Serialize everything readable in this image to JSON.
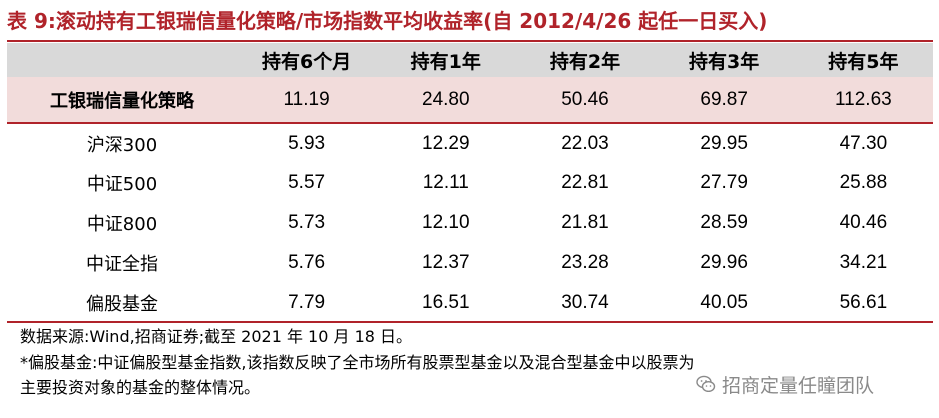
{
  "title": "表 9:滚动持有工银瑞信量化策略/市场指数平均收益率(自 2012/4/26 起任一日买入)",
  "table": {
    "headers": [
      "",
      "持有6个月",
      "持有1年",
      "持有2年",
      "持有3年",
      "持有5年"
    ],
    "rows": [
      {
        "name": "工银瑞信量化策略",
        "values": [
          "11.19",
          "24.80",
          "50.46",
          "69.87",
          "112.63"
        ],
        "highlight": true
      },
      {
        "name": "沪深300",
        "values": [
          "5.93",
          "12.29",
          "22.03",
          "29.95",
          "47.30"
        ]
      },
      {
        "name": "中证500",
        "values": [
          "5.57",
          "12.11",
          "22.81",
          "27.79",
          "25.88"
        ]
      },
      {
        "name": "中证800",
        "values": [
          "5.73",
          "12.10",
          "21.81",
          "28.59",
          "40.46"
        ]
      },
      {
        "name": "中证全指",
        "values": [
          "5.76",
          "12.37",
          "23.28",
          "29.96",
          "34.21"
        ]
      },
      {
        "name": "偏股基金",
        "values": [
          "7.79",
          "16.51",
          "30.74",
          "40.05",
          "56.61"
        ]
      }
    ]
  },
  "notes": {
    "source": "数据来源:Wind,招商证券;截至 2021 年 10 月 18 日。",
    "footnote_line1": "*偏股基金:中证偏股型基金指数,该指数反映了全市场所有股票型基金以及混合型基金中以股票为",
    "footnote_line2": "主要投资对象的基金的整体情况。"
  },
  "watermark": {
    "text": "招商定量任瞳团队",
    "icon": "wechat-icon"
  },
  "colors": {
    "accent": "#b0232a",
    "header_bg": "#d9d9d9",
    "highlight_bg": "#f2dcdb"
  }
}
